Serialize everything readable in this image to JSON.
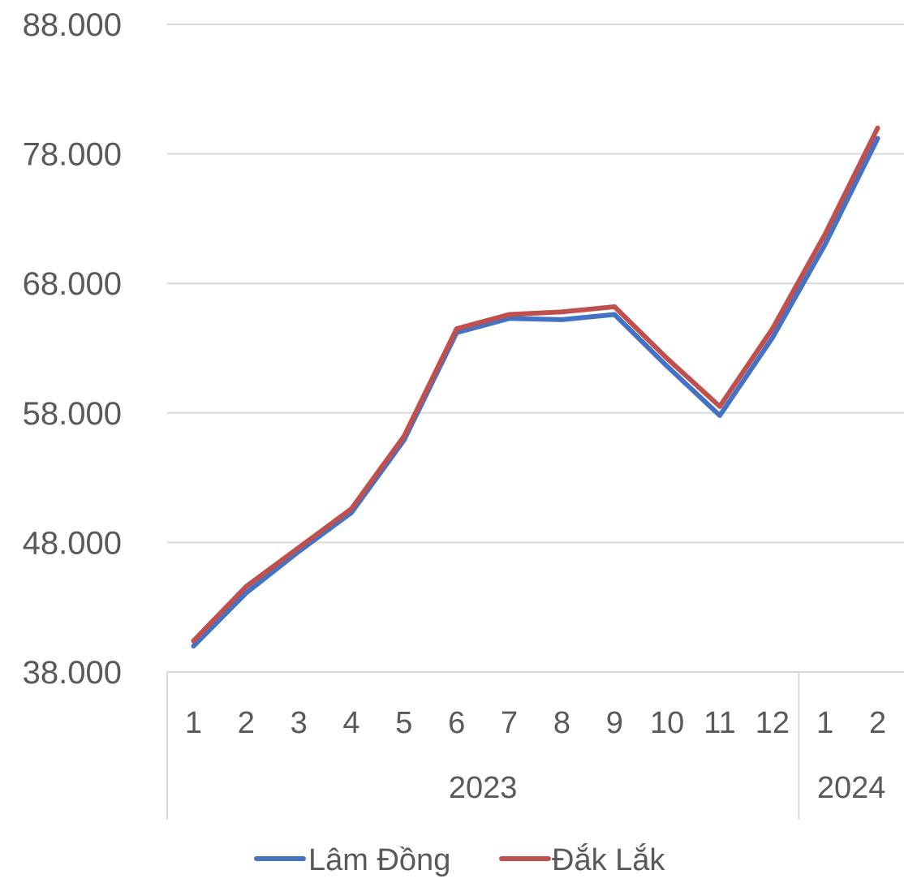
{
  "chart_data": {
    "type": "line",
    "title": "",
    "xlabel": "",
    "ylabel": "",
    "ylim": [
      38000,
      88000
    ],
    "y_ticks": [
      38000,
      48000,
      58000,
      68000,
      78000,
      88000
    ],
    "y_tick_labels": [
      "38.000",
      "48.000",
      "58.000",
      "68.000",
      "78.000",
      "88.000"
    ],
    "grid": true,
    "legend_position": "bottom",
    "categories": [
      "1",
      "2",
      "3",
      "4",
      "5",
      "6",
      "7",
      "8",
      "9",
      "10",
      "11",
      "12",
      "1",
      "2"
    ],
    "groups": [
      {
        "label": "2023",
        "count": 12
      },
      {
        "label": "2024",
        "count": 2
      }
    ],
    "series": [
      {
        "name": "Lâm Đồng",
        "color": "#4472C4",
        "values": [
          40000,
          44100,
          47300,
          50300,
          55900,
          64200,
          65300,
          65200,
          65600,
          61600,
          57800,
          63800,
          71000,
          79200
        ]
      },
      {
        "name": "Đắk Lắk",
        "color": "#C0504D",
        "values": [
          40400,
          44600,
          47600,
          50600,
          56200,
          64500,
          65600,
          65800,
          66200,
          62200,
          58500,
          64500,
          71800,
          80000
        ]
      }
    ]
  }
}
